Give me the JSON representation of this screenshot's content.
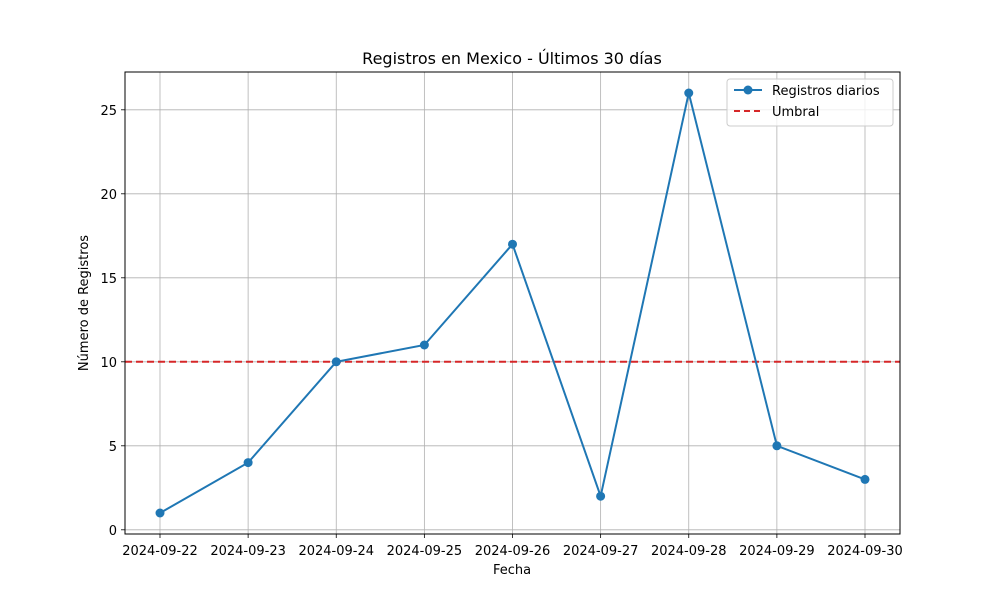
{
  "chart_data": {
    "type": "line",
    "title": "Registros en Mexico - Últimos 30 días",
    "xlabel": "Fecha",
    "ylabel": "Número de Registros",
    "categories": [
      "2024-09-22",
      "2024-09-23",
      "2024-09-24",
      "2024-09-25",
      "2024-09-26",
      "2024-09-27",
      "2024-09-28",
      "2024-09-29",
      "2024-09-30"
    ],
    "series": [
      {
        "name": "Registros diarios",
        "values": [
          1,
          4,
          10,
          11,
          17,
          2,
          26,
          5,
          3
        ],
        "color": "#1f77b4",
        "marker": "circle"
      }
    ],
    "threshold": {
      "name": "Umbral",
      "value": 10,
      "color": "#d62728",
      "style": "dashed"
    },
    "ylim": [
      -0.25,
      27.25
    ],
    "yticks": [
      0,
      5,
      10,
      15,
      20,
      25
    ],
    "grid": true,
    "legend_position": "top-right"
  }
}
